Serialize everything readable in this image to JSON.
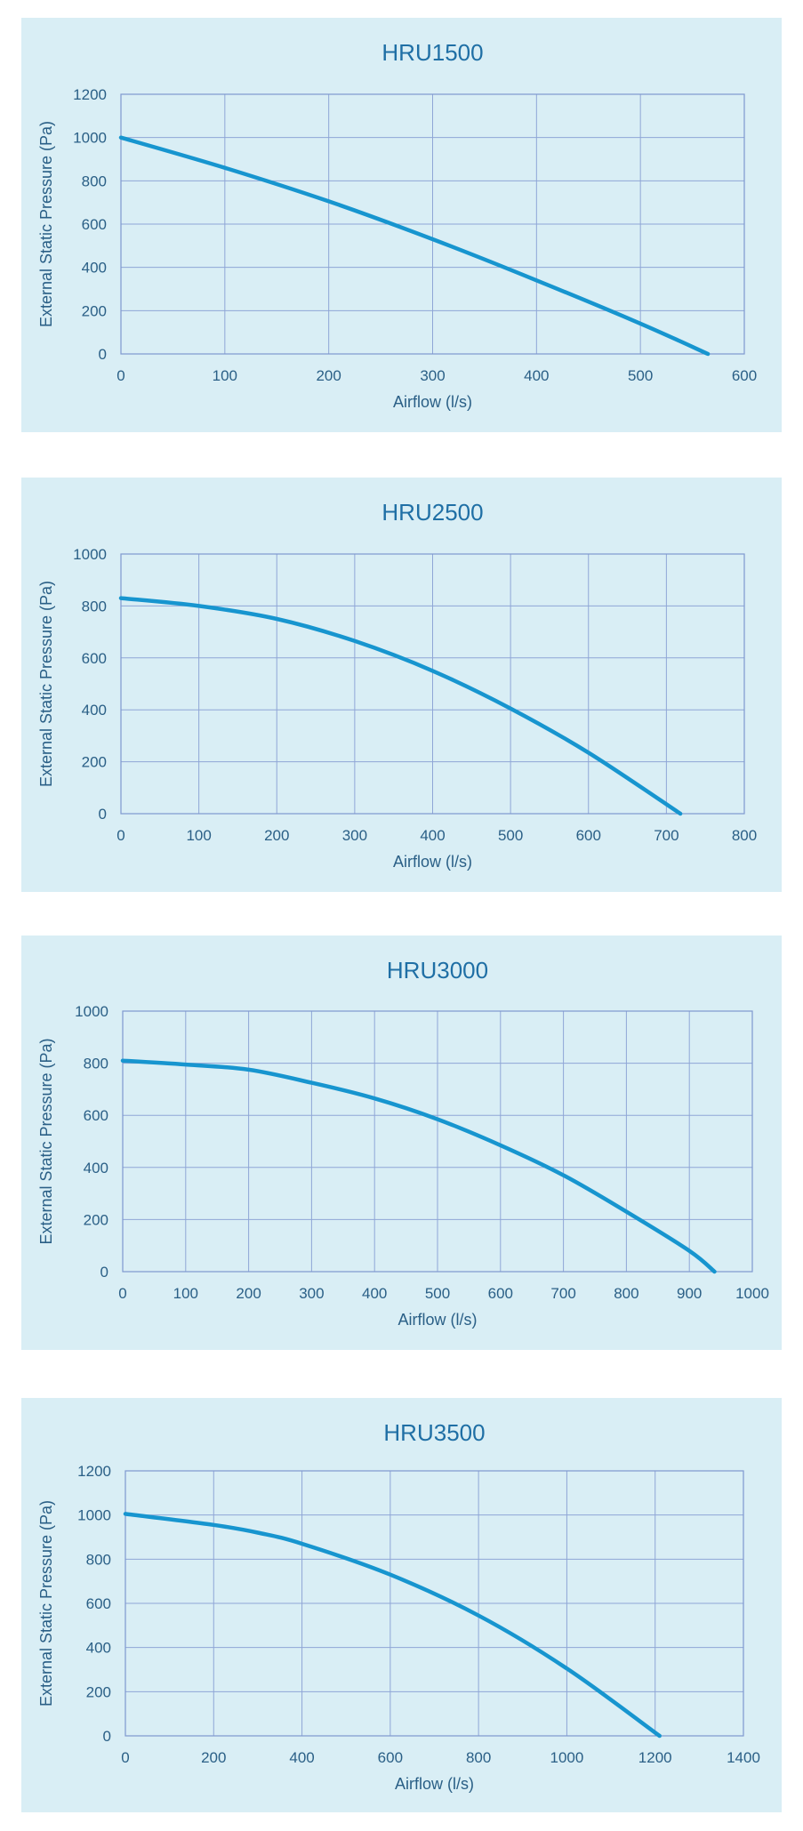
{
  "colors": {
    "panel_bg": "#d9eef5",
    "grid": "#8fa6d6",
    "curve": "#1795cf",
    "text": "#2a5f86",
    "title": "#1f6fa5"
  },
  "chart_data": [
    {
      "type": "line",
      "title": "HRU1500",
      "xlabel": "Airflow (l/s)",
      "ylabel": "External Static Pressure (Pa)",
      "xlim": [
        0,
        600
      ],
      "ylim": [
        0,
        1200
      ],
      "xticks": [
        0,
        100,
        200,
        300,
        400,
        500,
        600
      ],
      "yticks": [
        0,
        200,
        400,
        600,
        800,
        1000,
        1200
      ],
      "xtick_labels": [
        "0",
        "100",
        "200",
        "300",
        "400",
        "500",
        "600"
      ],
      "ytick_labels": [
        "0",
        "200",
        "400",
        "600",
        "800",
        "1000",
        "1200"
      ],
      "grid": true,
      "series": [
        {
          "x": [
            0,
            100,
            200,
            300,
            400,
            500,
            565
          ],
          "y": [
            1000,
            860,
            705,
            530,
            340,
            140,
            0
          ]
        }
      ]
    },
    {
      "type": "line",
      "title": "HRU2500",
      "xlabel": "Airflow (l/s)",
      "ylabel": "External Static Pressure (Pa)",
      "xlim": [
        0,
        800
      ],
      "ylim": [
        0,
        1000
      ],
      "xticks": [
        0,
        100,
        200,
        300,
        400,
        500,
        600,
        700,
        800
      ],
      "yticks": [
        0,
        200,
        400,
        600,
        800,
        1000
      ],
      "xtick_labels": [
        "0",
        "100",
        "200",
        "300",
        "400",
        "500",
        "600",
        "700",
        "800"
      ],
      "ytick_labels": [
        "0",
        "200",
        "400",
        "600",
        "800",
        "1000"
      ],
      "grid": true,
      "series": [
        {
          "x": [
            0,
            100,
            200,
            300,
            400,
            500,
            600,
            718
          ],
          "y": [
            830,
            800,
            750,
            665,
            550,
            405,
            235,
            0
          ]
        }
      ]
    },
    {
      "type": "line",
      "title": "HRU3000",
      "xlabel": "Airflow (l/s)",
      "ylabel": "External Static Pressure (Pa)",
      "xlim": [
        0,
        1000
      ],
      "ylim": [
        0,
        1000
      ],
      "xticks": [
        0,
        100,
        200,
        300,
        400,
        500,
        600,
        700,
        800,
        900,
        1000
      ],
      "yticks": [
        0,
        200,
        400,
        600,
        800,
        1000
      ],
      "xtick_labels": [
        "0",
        "100",
        "200",
        "300",
        "400",
        "500",
        "600",
        "700",
        "800",
        "900",
        "1000"
      ],
      "ytick_labels": [
        "0",
        "200",
        "400",
        "600",
        "800",
        "1000"
      ],
      "grid": true,
      "series": [
        {
          "x": [
            0,
            100,
            200,
            300,
            400,
            500,
            600,
            700,
            800,
            900,
            940
          ],
          "y": [
            810,
            795,
            775,
            725,
            665,
            585,
            485,
            370,
            230,
            80,
            0
          ]
        }
      ]
    },
    {
      "type": "line",
      "title": "HRU3500",
      "xlabel": "Airflow (l/s)",
      "ylabel": "External Static Pressure (Pa)",
      "xlim": [
        0,
        1400
      ],
      "ylim": [
        0,
        1200
      ],
      "xticks": [
        0,
        200,
        400,
        600,
        800,
        1000,
        1200,
        1400
      ],
      "yticks": [
        0,
        200,
        400,
        600,
        800,
        1000,
        1200
      ],
      "xtick_labels": [
        "0",
        "200",
        "400",
        "600",
        "800",
        "1000",
        "1200",
        "1400"
      ],
      "ytick_labels": [
        "0",
        "200",
        "400",
        "600",
        "800",
        "1000",
        "1200"
      ],
      "grid": true,
      "series": [
        {
          "x": [
            0,
            200,
            300,
            400,
            600,
            800,
            1000,
            1210
          ],
          "y": [
            1005,
            955,
            920,
            870,
            730,
            545,
            305,
            0
          ]
        }
      ]
    }
  ]
}
